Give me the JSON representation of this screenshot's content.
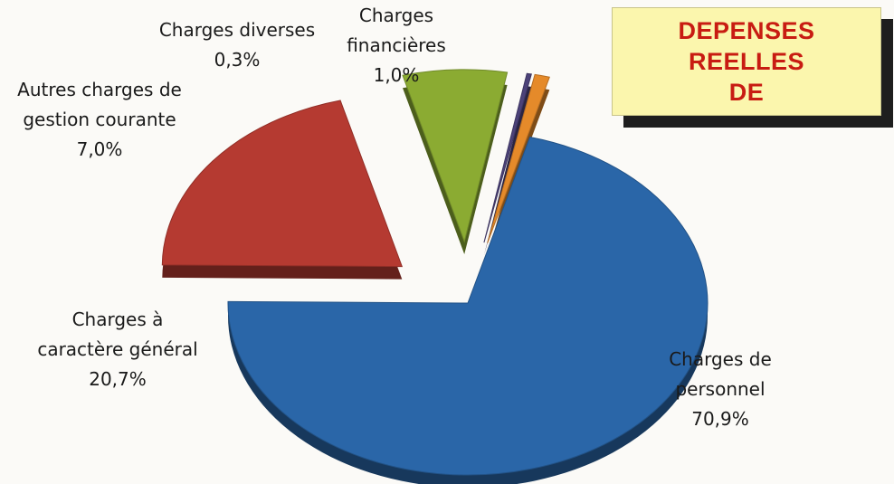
{
  "chart_data": {
    "type": "pie",
    "title_lines": [
      "DEPENSES",
      "REELLES",
      "DE"
    ],
    "slices": [
      {
        "label_lines": [
          "Charges de",
          "personnel"
        ],
        "value_label": "70,9%",
        "value": 70.9,
        "color": "#2a66a8"
      },
      {
        "label_lines": [
          "Charges à",
          "caractère général"
        ],
        "value_label": "20,7%",
        "value": 20.7,
        "color": "#b53a31"
      },
      {
        "label_lines": [
          "Autres charges de",
          "gestion courante"
        ],
        "value_label": "7,0%",
        "value": 7.0,
        "color": "#8bab32"
      },
      {
        "label_lines": [
          "Charges diverses"
        ],
        "value_label": "0,3%",
        "value": 0.3,
        "color": "#4c4279"
      },
      {
        "label_lines": [
          "Charges",
          "financières"
        ],
        "value_label": "1,0%",
        "value": 1.0,
        "color": "#e58a2a"
      }
    ]
  }
}
